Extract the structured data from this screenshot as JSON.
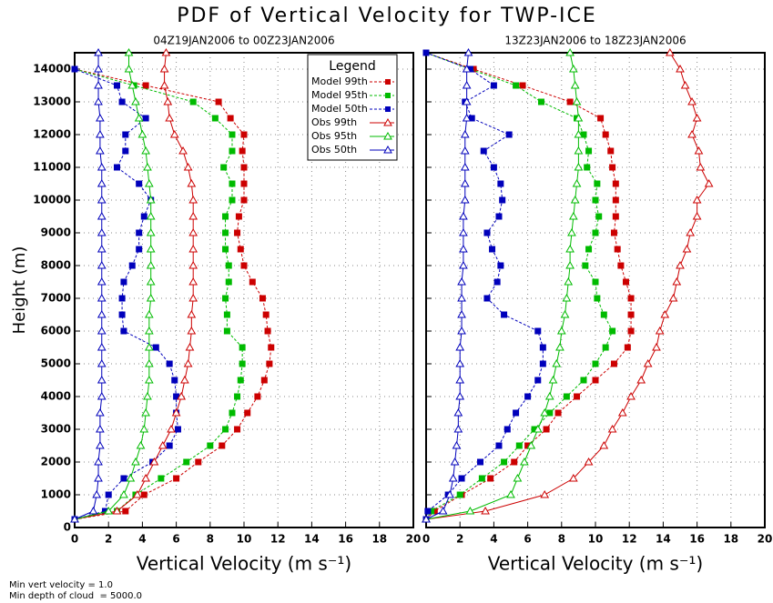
{
  "title": "PDF of Vertical Velocity for TWP-ICE",
  "notes": [
    "Min vert velocity = 1.0",
    "Min depth of cloud  = 5000.0"
  ],
  "chart_data": [
    {
      "type": "line",
      "subtitle": "04Z19JAN2006 to 00Z23JAN2006",
      "xlabel": "Vertical Velocity (m s⁻¹)",
      "ylabel": "Height (m)",
      "xlim": [
        0,
        20
      ],
      "xticks": [
        0,
        2,
        4,
        6,
        8,
        10,
        12,
        14,
        16,
        18,
        20
      ],
      "ylim": [
        0,
        14500
      ],
      "yticks": [
        0,
        1000,
        2000,
        3000,
        4000,
        5000,
        6000,
        7000,
        8000,
        9000,
        10000,
        11000,
        12000,
        13000,
        14000
      ],
      "grid": true,
      "legend": "upper right",
      "legend_title": "Legend",
      "y": [
        250,
        500,
        1000,
        1500,
        2000,
        2500,
        3000,
        3500,
        4000,
        4500,
        5000,
        5500,
        6000,
        6500,
        7000,
        7500,
        8000,
        8500,
        9000,
        9500,
        10000,
        10500,
        11000,
        11500,
        12000,
        12500,
        13000,
        13500,
        14000,
        14500
      ],
      "series": [
        {
          "name": "Model 99th",
          "color": "#cc0000",
          "marker": "square",
          "dash": true,
          "values": [
            0,
            3.0,
            4.1,
            6.0,
            7.3,
            8.7,
            9.6,
            10.2,
            10.8,
            11.2,
            11.5,
            11.6,
            11.4,
            11.3,
            11.1,
            10.5,
            10.0,
            9.8,
            9.6,
            9.7,
            10.0,
            10.0,
            10.0,
            9.9,
            10.0,
            9.2,
            8.5,
            4.2,
            0,
            null
          ]
        },
        {
          "name": "Model 95th",
          "color": "#00bb00",
          "marker": "square",
          "dash": true,
          "values": [
            0,
            2.5,
            3.6,
            5.1,
            6.6,
            8.0,
            8.9,
            9.3,
            9.6,
            9.8,
            9.9,
            9.9,
            9.0,
            9.0,
            8.9,
            9.1,
            9.1,
            8.9,
            8.9,
            8.9,
            9.3,
            9.3,
            8.8,
            9.3,
            9.3,
            8.3,
            7.0,
            3.5,
            0,
            null
          ]
        },
        {
          "name": "Model 50th",
          "color": "#0000bb",
          "marker": "square",
          "dash": true,
          "values": [
            0,
            1.8,
            2.0,
            2.9,
            4.6,
            5.6,
            6.1,
            6.0,
            6.0,
            5.9,
            5.6,
            4.8,
            2.9,
            2.8,
            2.8,
            2.9,
            3.4,
            3.8,
            3.8,
            4.1,
            4.5,
            3.8,
            2.5,
            3.0,
            3.0,
            4.2,
            2.8,
            2.5,
            0,
            null
          ]
        },
        {
          "name": "Obs 99th",
          "color": "#cc0000",
          "marker": "triangle",
          "dash": false,
          "values": [
            0,
            2.5,
            3.7,
            4.2,
            4.7,
            5.2,
            5.7,
            6.0,
            6.3,
            6.5,
            6.7,
            6.8,
            6.9,
            6.9,
            7.0,
            7.0,
            7.0,
            7.0,
            7.0,
            7.0,
            7.0,
            6.9,
            6.7,
            6.4,
            5.9,
            5.6,
            5.5,
            5.3,
            5.3,
            5.4
          ]
        },
        {
          "name": "Obs 95th",
          "color": "#00bb00",
          "marker": "triangle",
          "dash": false,
          "values": [
            0,
            2.0,
            2.9,
            3.3,
            3.6,
            3.9,
            4.1,
            4.2,
            4.3,
            4.4,
            4.4,
            4.4,
            4.4,
            4.4,
            4.5,
            4.5,
            4.5,
            4.5,
            4.5,
            4.5,
            4.5,
            4.4,
            4.3,
            4.2,
            4.0,
            3.8,
            3.6,
            3.4,
            3.2,
            3.2
          ]
        },
        {
          "name": "Obs 50th",
          "color": "#0000bb",
          "marker": "triangle",
          "dash": false,
          "values": [
            0,
            1.1,
            1.3,
            1.4,
            1.4,
            1.5,
            1.5,
            1.5,
            1.6,
            1.6,
            1.6,
            1.6,
            1.6,
            1.6,
            1.6,
            1.6,
            1.6,
            1.6,
            1.6,
            1.6,
            1.6,
            1.6,
            1.6,
            1.5,
            1.5,
            1.5,
            1.4,
            1.4,
            1.4,
            1.4
          ]
        }
      ]
    },
    {
      "type": "line",
      "subtitle": "13Z23JAN2006 to 18Z23JAN2006",
      "xlabel": "Vertical Velocity (m s⁻¹)",
      "xlim": [
        0,
        20
      ],
      "xticks": [
        0,
        2,
        4,
        6,
        8,
        10,
        12,
        14,
        16,
        18,
        20
      ],
      "ylim": [
        0,
        14500
      ],
      "yticks": [
        0,
        1000,
        2000,
        3000,
        4000,
        5000,
        6000,
        7000,
        8000,
        9000,
        10000,
        11000,
        12000,
        13000,
        14000
      ],
      "grid": true,
      "y": [
        250,
        500,
        1000,
        1500,
        2000,
        2500,
        3000,
        3500,
        4000,
        4500,
        5000,
        5500,
        6000,
        6500,
        7000,
        7500,
        8000,
        8500,
        9000,
        9500,
        10000,
        10500,
        11000,
        11500,
        12000,
        12500,
        13000,
        13500,
        14000,
        14500
      ],
      "series": [
        {
          "color": "#cc0000",
          "marker": "square",
          "dash": true,
          "values": [
            0,
            0.5,
            2.1,
            3.8,
            5.2,
            6.0,
            7.1,
            7.8,
            8.9,
            10.0,
            11.1,
            11.9,
            12.1,
            12.1,
            12.1,
            11.8,
            11.5,
            11.3,
            11.1,
            11.2,
            11.2,
            11.2,
            11.0,
            10.9,
            10.6,
            10.3,
            8.5,
            5.7,
            2.8,
            0
          ]
        },
        {
          "color": "#00bb00",
          "marker": "square",
          "dash": true,
          "values": [
            0,
            0.3,
            2.0,
            3.3,
            4.6,
            5.5,
            6.4,
            7.3,
            8.3,
            9.3,
            10.0,
            10.6,
            11.0,
            10.5,
            10.1,
            10.0,
            9.4,
            9.6,
            10.0,
            10.2,
            10.0,
            10.1,
            9.5,
            9.6,
            9.3,
            8.9,
            6.8,
            5.3,
            2.6,
            0
          ]
        },
        {
          "color": "#0000bb",
          "marker": "square",
          "dash": true,
          "values": [
            0,
            0.1,
            1.3,
            2.1,
            3.2,
            4.3,
            4.8,
            5.3,
            6.0,
            6.6,
            6.9,
            6.9,
            6.6,
            4.6,
            3.6,
            4.2,
            4.4,
            3.9,
            3.6,
            4.3,
            4.5,
            4.4,
            4.0,
            3.4,
            4.9,
            2.7,
            2.3,
            4.0,
            2.6,
            0
          ]
        },
        {
          "color": "#cc0000",
          "marker": "triangle",
          "dash": false,
          "values": [
            0,
            3.5,
            7.0,
            8.7,
            9.6,
            10.5,
            11.0,
            11.6,
            12.1,
            12.7,
            13.1,
            13.6,
            13.8,
            14.1,
            14.6,
            14.8,
            15.0,
            15.4,
            15.6,
            16.0,
            16.0,
            16.7,
            16.2,
            16.1,
            15.7,
            16.0,
            15.7,
            15.3,
            15.0,
            14.4
          ]
        },
        {
          "color": "#00bb00",
          "marker": "triangle",
          "dash": false,
          "values": [
            0,
            2.6,
            5.0,
            5.4,
            5.8,
            6.2,
            6.6,
            7.0,
            7.3,
            7.5,
            7.7,
            7.9,
            8.0,
            8.2,
            8.3,
            8.4,
            8.5,
            8.5,
            8.6,
            8.7,
            8.8,
            8.9,
            9.0,
            9.0,
            9.0,
            9.0,
            8.9,
            8.8,
            8.7,
            8.5
          ]
        },
        {
          "color": "#0000bb",
          "marker": "triangle",
          "dash": false,
          "values": [
            0,
            1.0,
            1.4,
            1.6,
            1.7,
            1.8,
            1.9,
            1.9,
            2.0,
            2.0,
            2.0,
            2.0,
            2.1,
            2.1,
            2.1,
            2.1,
            2.2,
            2.2,
            2.2,
            2.2,
            2.3,
            2.3,
            2.3,
            2.3,
            2.3,
            2.4,
            2.4,
            2.4,
            2.4,
            2.5
          ]
        }
      ]
    }
  ]
}
